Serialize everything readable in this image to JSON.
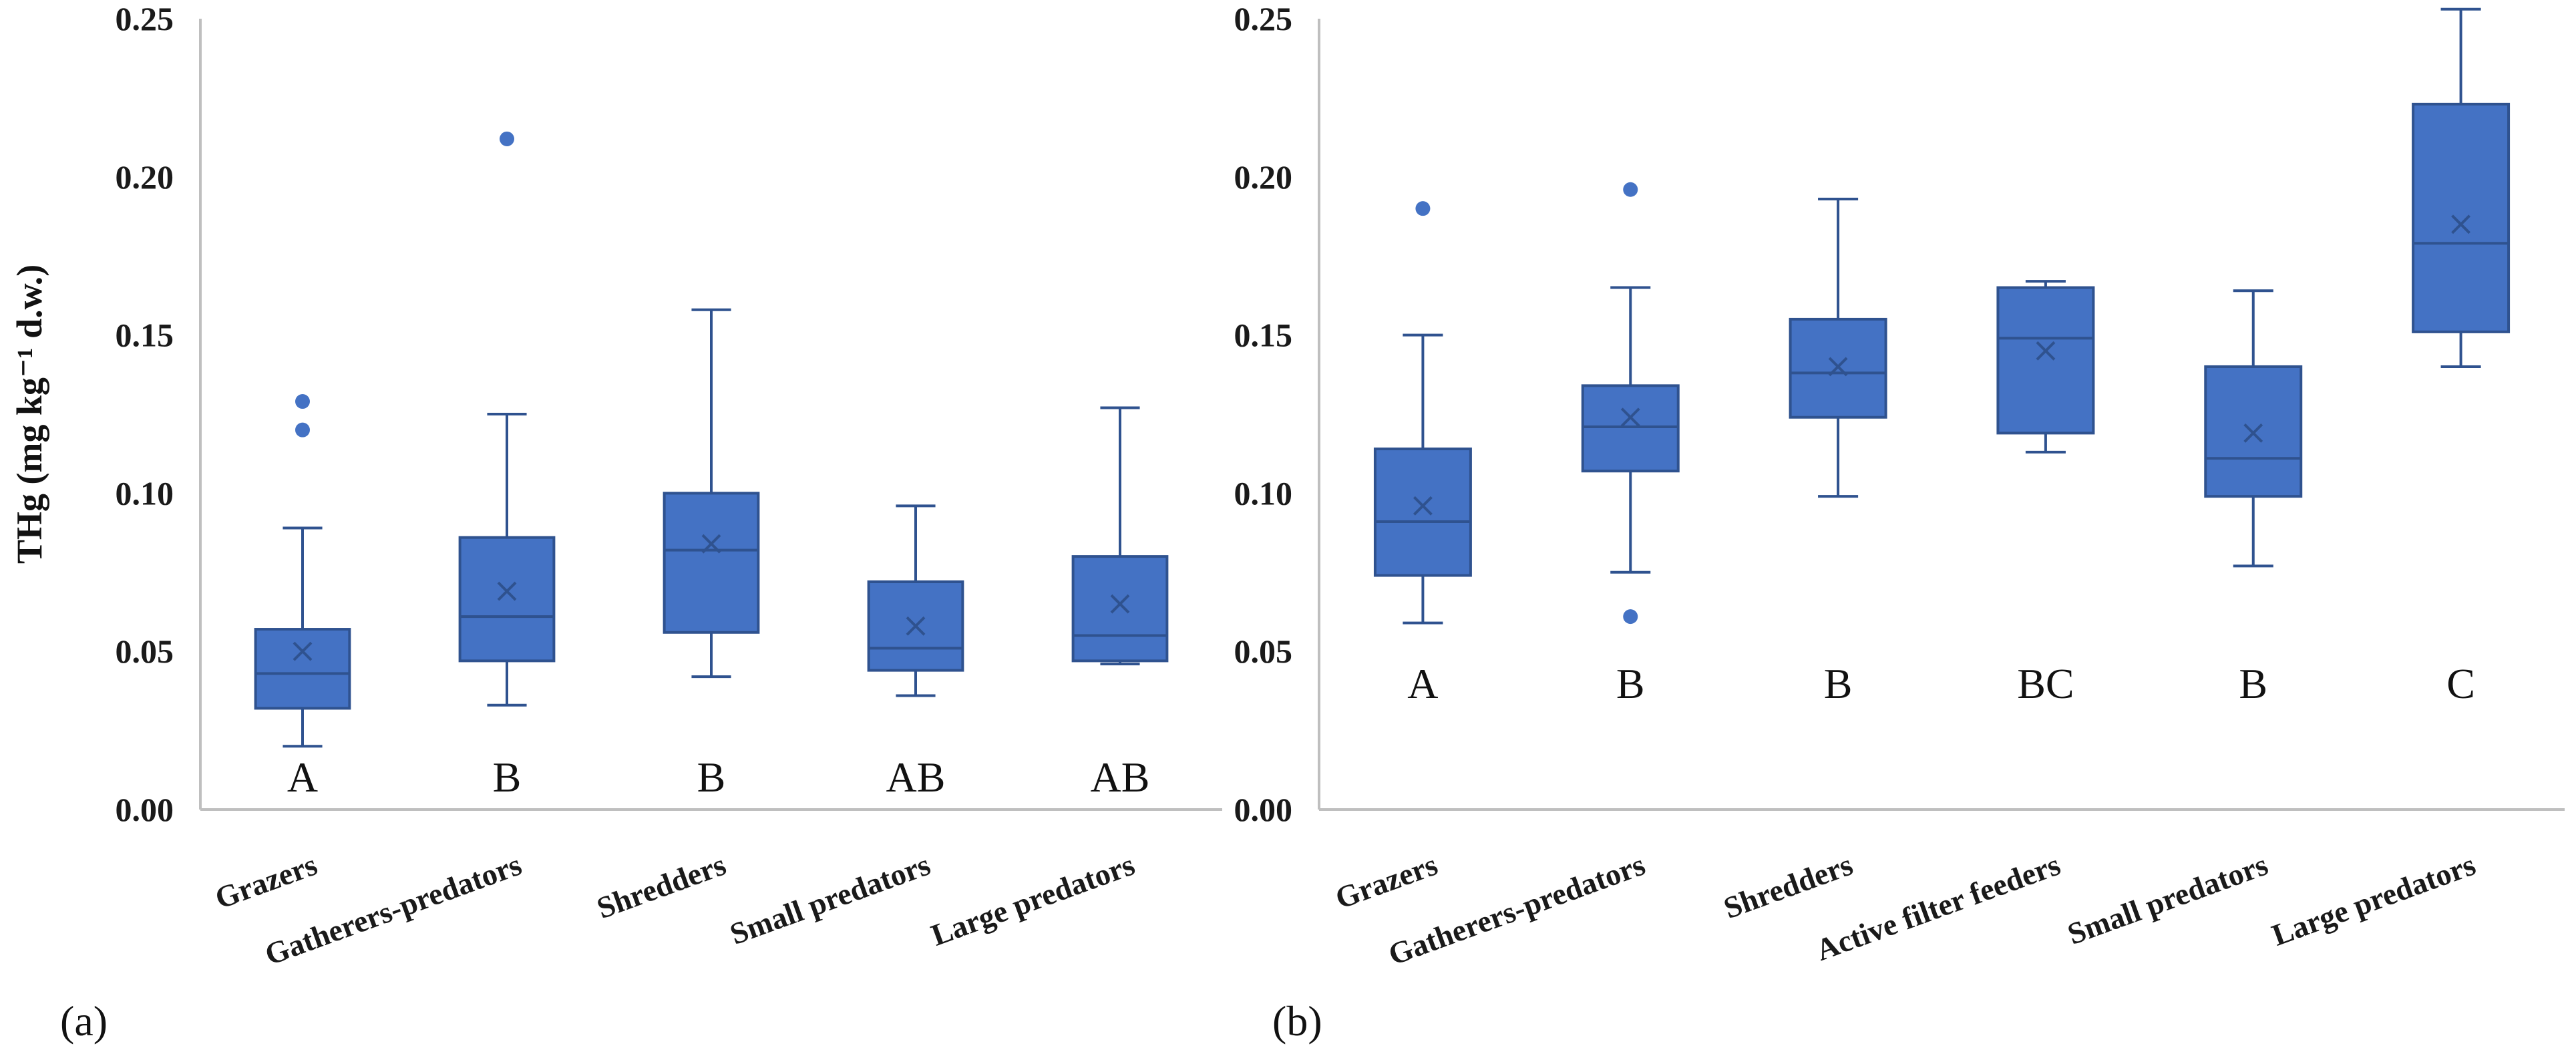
{
  "chart_data": [
    {
      "type": "box",
      "panel_label": "(a)",
      "ylabel": "THg (mg kg⁻¹ d.w.)",
      "ylim": [
        0,
        0.25
      ],
      "yticks": [
        "0.00",
        "0.05",
        "0.10",
        "0.15",
        "0.20",
        "0.25"
      ],
      "categories": [
        "Grazers",
        "Gatherers-predators",
        "Shredders",
        "Small predators",
        "Large predators"
      ],
      "groups": [
        "A",
        "B",
        "B",
        "AB",
        "AB"
      ],
      "boxes": [
        {
          "min": 0.02,
          "q1": 0.032,
          "median": 0.043,
          "q3": 0.057,
          "max": 0.089,
          "mean": 0.05,
          "outliers": [
            0.12,
            0.129
          ]
        },
        {
          "min": 0.033,
          "q1": 0.047,
          "median": 0.061,
          "q3": 0.086,
          "max": 0.125,
          "mean": 0.069,
          "outliers": [
            0.212
          ]
        },
        {
          "min": 0.042,
          "q1": 0.056,
          "median": 0.082,
          "q3": 0.1,
          "max": 0.158,
          "mean": 0.084,
          "outliers": []
        },
        {
          "min": 0.036,
          "q1": 0.044,
          "median": 0.051,
          "q3": 0.072,
          "max": 0.096,
          "mean": 0.058,
          "outliers": []
        },
        {
          "min": 0.046,
          "q1": 0.047,
          "median": 0.055,
          "q3": 0.08,
          "max": 0.127,
          "mean": 0.065,
          "outliers": []
        }
      ]
    },
    {
      "type": "box",
      "panel_label": "(b)",
      "ylabel": "",
      "ylim": [
        0,
        0.25
      ],
      "yticks": [
        "0.00",
        "0.05",
        "0.10",
        "0.15",
        "0.20",
        "0.25"
      ],
      "categories": [
        "Grazers",
        "Gatherers-predators",
        "Shredders",
        "Active filter feeders",
        "Small predators",
        "Large predators"
      ],
      "groups": [
        "A",
        "B",
        "B",
        "BC",
        "B",
        "C"
      ],
      "boxes": [
        {
          "min": 0.059,
          "q1": 0.074,
          "median": 0.091,
          "q3": 0.114,
          "max": 0.15,
          "mean": 0.096,
          "outliers": [
            0.19
          ]
        },
        {
          "min": 0.075,
          "q1": 0.107,
          "median": 0.121,
          "q3": 0.134,
          "max": 0.165,
          "mean": 0.124,
          "outliers": [
            0.061,
            0.196
          ]
        },
        {
          "min": 0.099,
          "q1": 0.124,
          "median": 0.138,
          "q3": 0.155,
          "max": 0.193,
          "mean": 0.14,
          "outliers": []
        },
        {
          "min": 0.113,
          "q1": 0.119,
          "median": 0.149,
          "q3": 0.165,
          "max": 0.167,
          "mean": 0.145,
          "outliers": []
        },
        {
          "min": 0.077,
          "q1": 0.099,
          "median": 0.111,
          "q3": 0.14,
          "max": 0.164,
          "mean": 0.119,
          "outliers": []
        },
        {
          "min": 0.14,
          "q1": 0.151,
          "median": 0.179,
          "q3": 0.223,
          "max": 0.253,
          "mean": 0.185,
          "outliers": []
        }
      ]
    }
  ]
}
